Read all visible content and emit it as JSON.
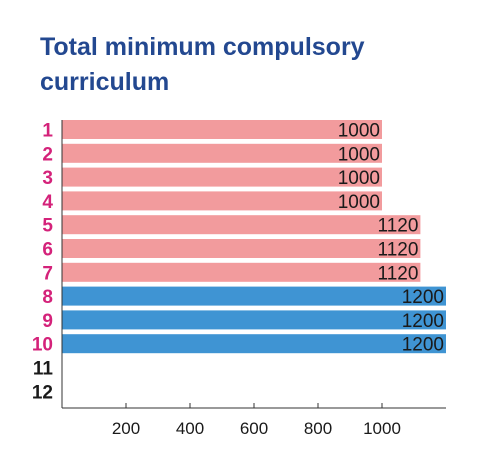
{
  "chart_data": {
    "type": "bar",
    "orientation": "horizontal",
    "title": "Total minimum compulsory curriculum",
    "categories": [
      "1",
      "2",
      "3",
      "4",
      "5",
      "6",
      "7",
      "8",
      "9",
      "10",
      "11",
      "12"
    ],
    "values": [
      1000,
      1000,
      1000,
      1000,
      1120,
      1120,
      1120,
      1200,
      1200,
      1200,
      null,
      null
    ],
    "value_labels": [
      "1000",
      "1000",
      "1000",
      "1000",
      "1120",
      "1120",
      "1120",
      "1200",
      "1200",
      "1200",
      "",
      ""
    ],
    "x_ticks": [
      200,
      400,
      600,
      800,
      1000
    ],
    "x_tick_labels": [
      "200",
      "400",
      "600",
      "800",
      "1000"
    ],
    "xlim": [
      0,
      1200
    ],
    "grid": false,
    "colors": {
      "title": "#234890",
      "bar_pink": "#f29b9d",
      "bar_blue": "#3f94d3",
      "label_magenta": "#d4227a",
      "label_plain": "#1a1a1a",
      "axis": "#333333"
    },
    "bar_colors": [
      "#f29b9d",
      "#f29b9d",
      "#f29b9d",
      "#f29b9d",
      "#f29b9d",
      "#f29b9d",
      "#f29b9d",
      "#3f94d3",
      "#3f94d3",
      "#3f94d3",
      null,
      null
    ],
    "category_label_colors": [
      "#d4227a",
      "#d4227a",
      "#d4227a",
      "#d4227a",
      "#d4227a",
      "#d4227a",
      "#d4227a",
      "#d4227a",
      "#d4227a",
      "#d4227a",
      "#1a1a1a",
      "#1a1a1a"
    ],
    "category_label_bold": [
      true,
      true,
      true,
      true,
      true,
      true,
      true,
      true,
      true,
      true,
      false,
      false
    ]
  }
}
